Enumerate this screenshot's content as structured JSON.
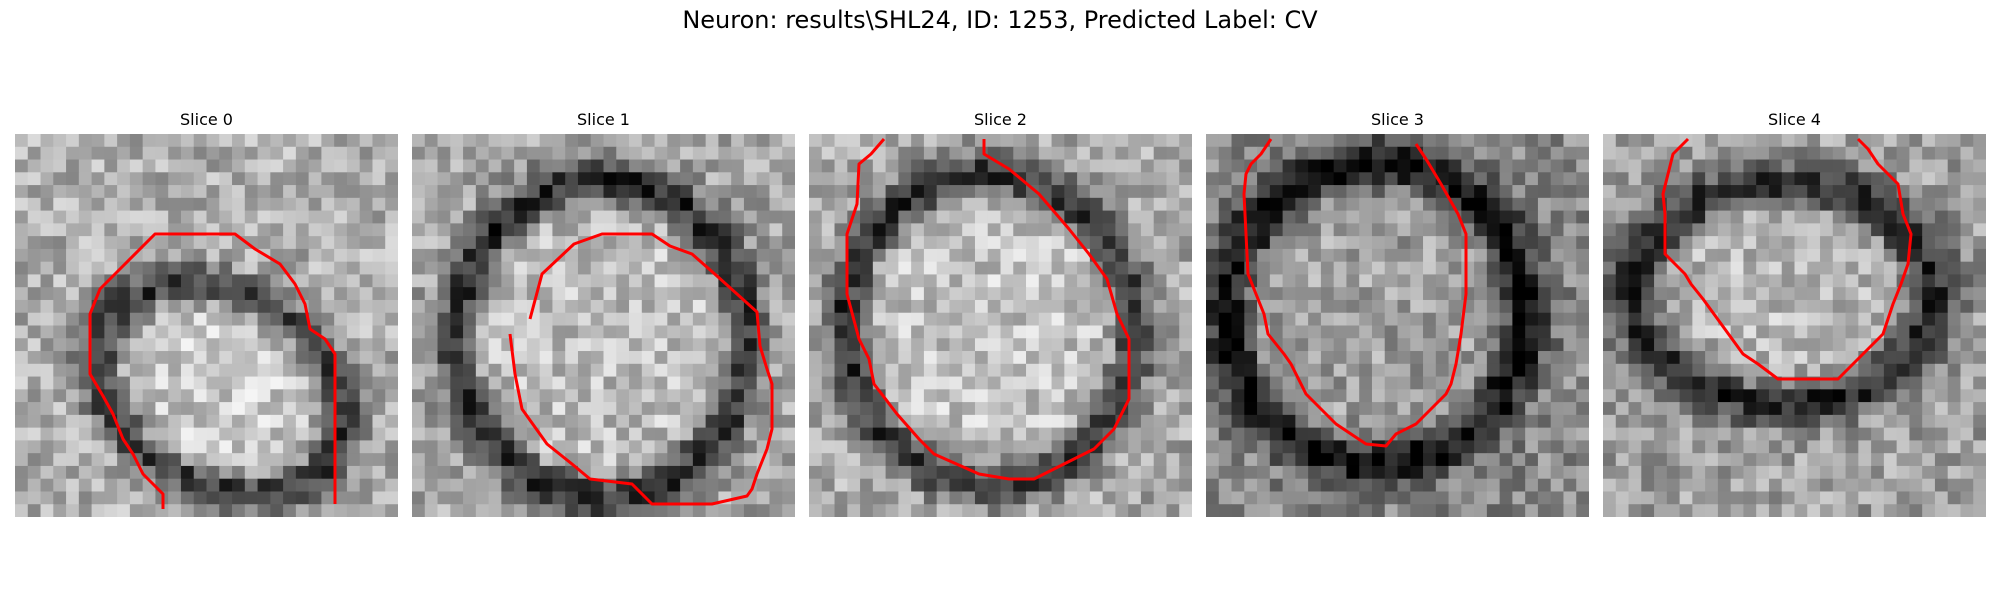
{
  "title": "Neuron: results\\SHL24, ID: 1253, Predicted Label: CV",
  "colors": {
    "contour": "#ff0000"
  },
  "panels": [
    {
      "label": "Slice 0"
    },
    {
      "label": "Slice 1"
    },
    {
      "label": "Slice 2"
    },
    {
      "label": "Slice 3"
    },
    {
      "label": "Slice 4"
    }
  ]
}
